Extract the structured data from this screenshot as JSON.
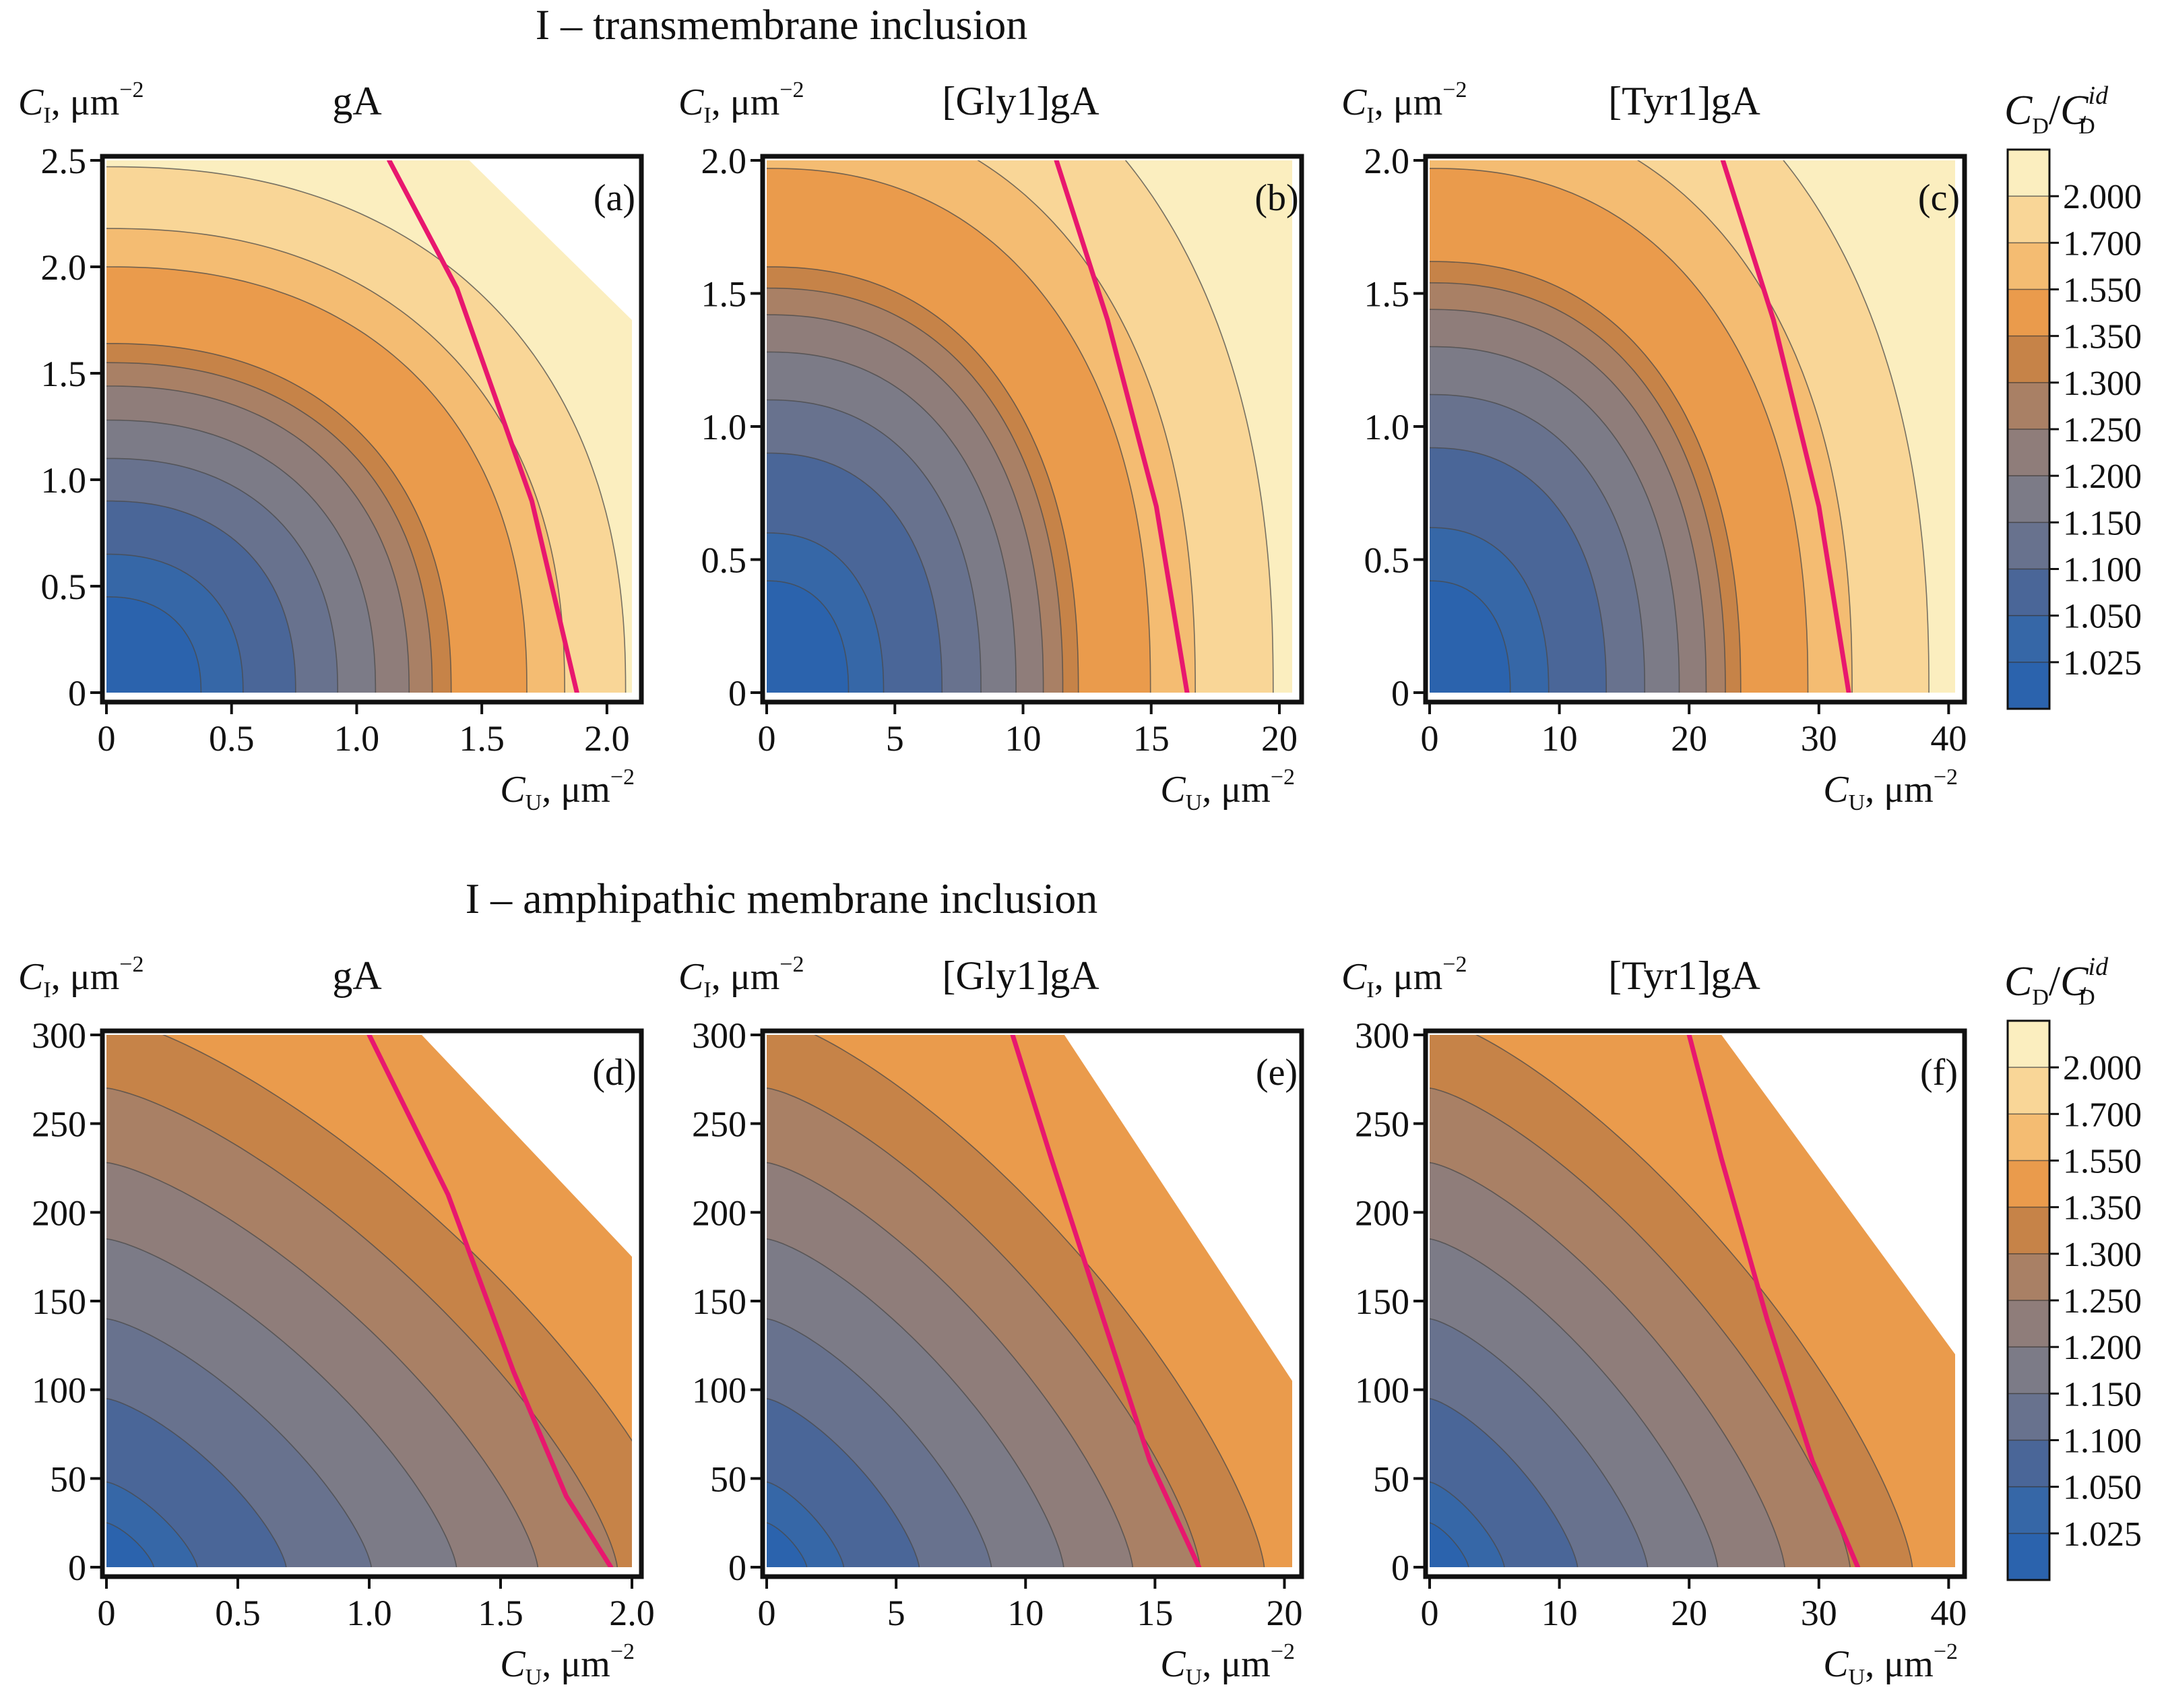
{
  "sections": [
    {
      "title": "I – transmembrane inclusion"
    },
    {
      "title": "I – amphipathic membrane inclusion"
    }
  ],
  "axes": {
    "y_label_main": "C",
    "y_label_sub": "I",
    "y_label_unit": ", μm",
    "y_label_sup": "−2",
    "x_label_main": "C",
    "x_label_sub": "U",
    "x_label_unit": ", μm",
    "x_label_sup": "−2"
  },
  "colorbar": {
    "label_main": "C",
    "label_sub": "D",
    "label_slash": "/",
    "label_den": "C",
    "label_den_sub": "D",
    "label_den_sup": "id",
    "levels": [
      "1.025",
      "1.050",
      "1.100",
      "1.150",
      "1.200",
      "1.250",
      "1.300",
      "1.350",
      "1.550",
      "1.700",
      "2.000"
    ],
    "colors": [
      "#2b63ad",
      "#3667a7",
      "#4a6698",
      "#68728e",
      "#7c7b87",
      "#8f7d7a",
      "#a98065",
      "#c68348",
      "#ea9b4c",
      "#f4bc72",
      "#f9d697",
      "#fbeebf"
    ],
    "contour_line": "#4a4a4a",
    "trend_line": "#e8176e"
  },
  "chart_data": [
    {
      "type": "heatmap",
      "panel": "(a)",
      "title": "gA",
      "section": "transmembrane",
      "xlim": [
        0,
        2.1
      ],
      "ylim": [
        0,
        2.5
      ],
      "x_ticks": [
        "0",
        "0.5",
        "1.0",
        "1.5",
        "2.0"
      ],
      "x_tick_values": [
        0,
        0.5,
        1.0,
        1.5,
        2.0
      ],
      "y_ticks": [
        "0",
        "0.5",
        "1.0",
        "1.5",
        "2.0",
        "2.5"
      ],
      "y_tick_values": [
        0,
        0.5,
        1.0,
        1.5,
        2.0,
        2.5
      ],
      "contour_model": {
        "y_radius_at_level": [
          0.45,
          0.65,
          0.9,
          1.1,
          1.28,
          1.44,
          1.55,
          1.64,
          2.0,
          2.18,
          2.47
        ],
        "x_over_y": 0.84,
        "exponent": 2.3
      },
      "magenta_line": {
        "x": [
          1.88,
          1.7,
          1.4,
          1.13
        ],
        "y": [
          0,
          0.9,
          1.9,
          2.5
        ]
      },
      "white_region": [
        [
          1.45,
          2.5
        ],
        [
          2.1,
          2.5
        ],
        [
          2.1,
          1.75
        ]
      ]
    },
    {
      "type": "heatmap",
      "panel": "(b)",
      "title": "[Gly1]gA",
      "section": "transmembrane",
      "xlim": [
        0,
        20.5
      ],
      "ylim": [
        0,
        2.0
      ],
      "x_ticks": [
        "0",
        "5",
        "10",
        "15",
        "20"
      ],
      "x_tick_values": [
        0,
        5,
        10,
        15,
        20
      ],
      "y_ticks": [
        "0",
        "0.5",
        "1.0",
        "1.5",
        "2.0"
      ],
      "y_tick_values": [
        0,
        0.5,
        1.0,
        1.5,
        2.0
      ],
      "contour_model": {
        "y_radius_at_level": [
          0.42,
          0.6,
          0.9,
          1.1,
          1.28,
          1.42,
          1.52,
          1.6,
          1.97,
          2.2,
          2.6
        ],
        "x_over_y": 7.6,
        "exponent": 2.3
      },
      "magenta_line": {
        "x": [
          16.4,
          15.2,
          13.3,
          11.3
        ],
        "y": [
          0,
          0.7,
          1.4,
          2.0
        ]
      },
      "white_region": null
    },
    {
      "type": "heatmap",
      "panel": "(c)",
      "title": "[Tyr1]gA",
      "section": "transmembrane",
      "xlim": [
        0,
        40.5
      ],
      "ylim": [
        0,
        2.0
      ],
      "x_ticks": [
        "0",
        "10",
        "20",
        "30",
        "40"
      ],
      "x_tick_values": [
        0,
        10,
        20,
        30,
        40
      ],
      "y_ticks": [
        "0",
        "0.5",
        "1.0",
        "1.5",
        "2.0"
      ],
      "y_tick_values": [
        0,
        0.5,
        1.0,
        1.5,
        2.0
      ],
      "contour_model": {
        "y_radius_at_level": [
          0.42,
          0.62,
          0.92,
          1.12,
          1.3,
          1.44,
          1.54,
          1.62,
          1.97,
          2.2,
          2.6
        ],
        "x_over_y": 14.8,
        "exponent": 2.3
      },
      "magenta_line": {
        "x": [
          32.3,
          30.0,
          26.5,
          22.6
        ],
        "y": [
          0,
          0.7,
          1.4,
          2.0
        ]
      },
      "white_region": null
    },
    {
      "type": "heatmap",
      "panel": "(d)",
      "title": "gA",
      "section": "amphipathic",
      "xlim": [
        0,
        2.0
      ],
      "ylim": [
        0,
        300
      ],
      "x_ticks": [
        "0",
        "0.5",
        "1.0",
        "1.5",
        "2.0"
      ],
      "x_tick_values": [
        0,
        0.5,
        1.0,
        1.5,
        2.0
      ],
      "y_ticks": [
        "0",
        "50",
        "100",
        "150",
        "200",
        "250",
        "300"
      ],
      "y_tick_values": [
        0,
        50,
        100,
        150,
        200,
        250,
        300
      ],
      "contour_model": {
        "y_radius_at_level": [
          25,
          48,
          95,
          140,
          185,
          228,
          270,
          310,
          420,
          470,
          560
        ],
        "x_over_y": 0.0072,
        "exponent": 1.35
      },
      "magenta_line": {
        "x": [
          1.92,
          1.75,
          1.55,
          1.3,
          1.0
        ],
        "y": [
          0,
          40,
          110,
          210,
          300
        ]
      },
      "white_region": [
        [
          1.2,
          300
        ],
        [
          2.0,
          300
        ],
        [
          2.0,
          175
        ]
      ]
    },
    {
      "type": "heatmap",
      "panel": "(e)",
      "title": "[Gly1]gA",
      "section": "amphipathic",
      "xlim": [
        0,
        20.3
      ],
      "ylim": [
        0,
        300
      ],
      "x_ticks": [
        "0",
        "5",
        "10",
        "15",
        "20"
      ],
      "x_tick_values": [
        0,
        5,
        10,
        15,
        20
      ],
      "y_ticks": [
        "0",
        "50",
        "100",
        "150",
        "200",
        "250",
        "300"
      ],
      "y_tick_values": [
        0,
        50,
        100,
        150,
        200,
        250,
        300
      ],
      "contour_model": {
        "y_radius_at_level": [
          25,
          48,
          95,
          140,
          185,
          228,
          270,
          310,
          420,
          470,
          560
        ],
        "x_over_y": 0.062,
        "exponent": 1.35
      },
      "magenta_line": {
        "x": [
          16.7,
          14.8,
          13.0,
          11.0,
          9.5
        ],
        "y": [
          0,
          60,
          140,
          230,
          300
        ]
      },
      "white_region": [
        [
          11.5,
          300
        ],
        [
          20.3,
          300
        ],
        [
          20.3,
          105
        ]
      ]
    },
    {
      "type": "heatmap",
      "panel": "(f)",
      "title": "[Tyr1]gA",
      "section": "amphipathic",
      "xlim": [
        0,
        40.5
      ],
      "ylim": [
        0,
        300
      ],
      "x_ticks": [
        "0",
        "10",
        "20",
        "30",
        "40"
      ],
      "x_tick_values": [
        0,
        10,
        20,
        30,
        40
      ],
      "y_ticks": [
        "0",
        "50",
        "100",
        "150",
        "200",
        "250",
        "300"
      ],
      "y_tick_values": [
        0,
        50,
        100,
        150,
        200,
        250,
        300
      ],
      "contour_model": {
        "y_radius_at_level": [
          25,
          48,
          95,
          140,
          185,
          228,
          270,
          310,
          420,
          470,
          560
        ],
        "x_over_y": 0.12,
        "exponent": 1.35
      },
      "magenta_line": {
        "x": [
          33.0,
          29.5,
          26.0,
          22.5,
          20.0
        ],
        "y": [
          0,
          60,
          140,
          230,
          300
        ]
      },
      "white_region": [
        [
          22.5,
          300
        ],
        [
          40.5,
          300
        ],
        [
          40.5,
          120
        ]
      ]
    }
  ]
}
